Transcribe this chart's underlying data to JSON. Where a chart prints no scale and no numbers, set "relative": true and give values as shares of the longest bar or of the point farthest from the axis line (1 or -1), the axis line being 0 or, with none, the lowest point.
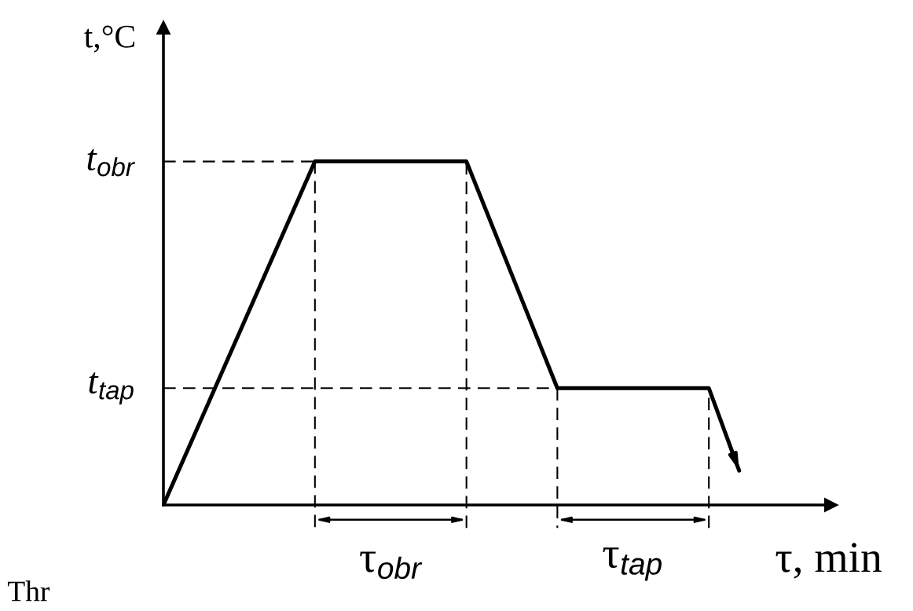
{
  "chart_data": {
    "type": "line",
    "relative": true,
    "categories": [
      null,
      null,
      null,
      null,
      null,
      null,
      null,
      null,
      null,
      null,
      null,
      null,
      null,
      null,
      null,
      null,
      null,
      null,
      null,
      null
    ],
    "series": [
      {
        "color": "#000000",
        "values": [
          0,
          0.2,
          0.4,
          0.6,
          0.8,
          1,
          1,
          1,
          1,
          1,
          1,
          0.78,
          0.56,
          0.34,
          0.34,
          0.34,
          0.34,
          0.34,
          0.34,
          0.1
        ]
      }
    ],
    "ylabel": "t,°C",
    "xlabel": "τ, min",
    "ref_lines": [
      {
        "axis": "y",
        "value": 1,
        "label": "t$_{obr}$",
        "color": "#000000",
        "line_style": "dashed"
      },
      {
        "axis": "y",
        "value": 0.34,
        "label": "t$_{tap}$",
        "color": "#000000",
        "line_style": "dashed"
      }
    ],
    "annotations": [
      "τ$_{obr}$",
      "τ$_{tap}$",
      "Thr"
    ],
    "marker": "none",
    "line_style": "solid"
  }
}
